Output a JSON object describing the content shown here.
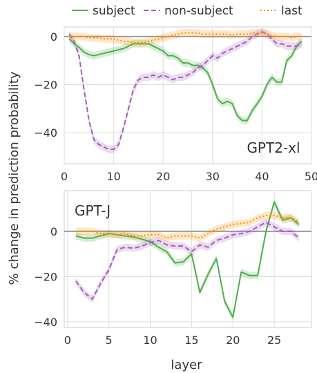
{
  "legend": {
    "items": [
      {
        "label": "subject",
        "color": "#4daf4a",
        "dash": "solid"
      },
      {
        "label": "non-subject",
        "color": "#a65cba",
        "dash": "dashed"
      },
      {
        "label": "last",
        "color": "#ff8c00",
        "dash": "dotted"
      }
    ],
    "placement": "top-center"
  },
  "ylabel": "% change in prediction probability",
  "xlabel": "layer",
  "chart_data": [
    {
      "type": "line",
      "panel_label": "GPT2-xl",
      "xlim": [
        0,
        50
      ],
      "ylim": [
        -53,
        4
      ],
      "xticks": [
        0,
        10,
        20,
        30,
        40,
        50
      ],
      "yticks": [
        0,
        -20,
        -40
      ],
      "grid": true,
      "series": [
        {
          "name": "subject",
          "color": "#4daf4a",
          "dash": "solid",
          "x": [
            1,
            2,
            3,
            4,
            5,
            6,
            7,
            8,
            9,
            10,
            11,
            12,
            13,
            14,
            15,
            16,
            17,
            18,
            19,
            20,
            21,
            22,
            23,
            24,
            25,
            26,
            27,
            28,
            29,
            30,
            31,
            32,
            33,
            34,
            35,
            36,
            37,
            38,
            39,
            40,
            41,
            42,
            43,
            44,
            45,
            46,
            47,
            48
          ],
          "y": [
            -1,
            -3,
            -4.5,
            -6.5,
            -7.5,
            -8,
            -7.5,
            -7,
            -6.5,
            -6,
            -5.5,
            -5,
            -4,
            -3,
            -3,
            -3,
            -3,
            -4,
            -5,
            -6,
            -8,
            -8,
            -9,
            -11,
            -11,
            -12,
            -12,
            -13,
            -15,
            -20,
            -26,
            -28,
            -27,
            -28,
            -33,
            -35,
            -35,
            -31,
            -28,
            -25,
            -20,
            -17,
            -19,
            -19,
            -10,
            -8,
            -4,
            -2
          ]
        },
        {
          "name": "non-subject",
          "color": "#a65cba",
          "dash": "dashed",
          "x": [
            1,
            2,
            3,
            4,
            5,
            6,
            7,
            8,
            9,
            10,
            11,
            12,
            13,
            14,
            15,
            16,
            17,
            18,
            19,
            20,
            21,
            22,
            23,
            24,
            25,
            26,
            27,
            28,
            29,
            30,
            31,
            32,
            33,
            34,
            35,
            36,
            37,
            38,
            39,
            40,
            41,
            42,
            43,
            44,
            45,
            46,
            47,
            48
          ],
          "y": [
            1,
            -2,
            -8,
            -22,
            -35,
            -43,
            -45,
            -46,
            -47,
            -47,
            -45,
            -38,
            -30,
            -22,
            -18,
            -17,
            -17,
            -16,
            -17,
            -16,
            -17,
            -18,
            -17,
            -17,
            -16,
            -15,
            -13,
            -12,
            -10,
            -8,
            -9,
            -7,
            -6,
            -5,
            -4,
            -3,
            -2,
            0,
            1,
            2,
            1,
            -1,
            -3,
            -3,
            -4,
            -4,
            -4,
            -3
          ]
        },
        {
          "name": "last",
          "color": "#ff8c00",
          "dash": "dotted",
          "x": [
            1,
            2,
            3,
            4,
            5,
            6,
            7,
            8,
            9,
            10,
            11,
            12,
            13,
            14,
            15,
            16,
            17,
            18,
            19,
            20,
            21,
            22,
            23,
            24,
            25,
            26,
            27,
            28,
            29,
            30,
            31,
            32,
            33,
            34,
            35,
            36,
            37,
            38,
            39,
            40,
            41,
            42,
            43,
            44,
            45,
            46,
            47,
            48
          ],
          "y": [
            0,
            0,
            0,
            0,
            -0.5,
            -0.5,
            -0.5,
            -1,
            -1,
            -1,
            -1.5,
            -2,
            -2,
            -2.5,
            -2.5,
            -2.5,
            -2,
            -1.5,
            -1,
            -0.5,
            0,
            0.5,
            1,
            1.5,
            1.5,
            1.5,
            1.5,
            1,
            1,
            1,
            1,
            1,
            1,
            0.5,
            1,
            1,
            1,
            1.5,
            1.5,
            1.5,
            1,
            0.5,
            0,
            0,
            0,
            -0.5,
            0,
            0
          ]
        }
      ]
    },
    {
      "type": "line",
      "panel_label": "GPT-J",
      "xlim": [
        -0.4,
        29.5
      ],
      "ylim": [
        -42.5,
        18
      ],
      "xticks": [
        0,
        5,
        10,
        15,
        20,
        25
      ],
      "yticks": [
        0,
        -20,
        -40
      ],
      "grid": true,
      "series": [
        {
          "name": "subject",
          "color": "#4daf4a",
          "dash": "solid",
          "x": [
            1,
            2,
            3,
            4,
            5,
            6,
            7,
            8,
            9,
            10,
            11,
            12,
            13,
            14,
            15,
            16,
            17,
            18,
            19,
            20,
            21,
            22,
            23,
            24,
            25,
            26,
            27,
            28
          ],
          "y": [
            -2,
            -3,
            -3,
            -2,
            -1,
            -1.5,
            -2,
            -2.5,
            -3.5,
            -4.5,
            -7,
            -9,
            -14,
            -13.5,
            -10,
            -27,
            -19,
            -12,
            -31,
            -38,
            -18,
            -19.5,
            -19.5,
            0,
            13,
            5,
            6,
            3
          ]
        },
        {
          "name": "non-subject",
          "color": "#a65cba",
          "dash": "dashed",
          "x": [
            1,
            2,
            3,
            4,
            5,
            6,
            7,
            8,
            9,
            10,
            11,
            12,
            13,
            14,
            15,
            16,
            17,
            18,
            19,
            20,
            21,
            22,
            23,
            24,
            25,
            26,
            27,
            28
          ],
          "y": [
            -22,
            -27,
            -30,
            -23,
            -17,
            -8,
            -7,
            -7.5,
            -6.5,
            -5,
            -4,
            -6,
            -6.5,
            -6.5,
            -9,
            -6,
            -7,
            -4,
            -3,
            -1.5,
            -1,
            0,
            2,
            4,
            2,
            0,
            0,
            -3
          ]
        },
        {
          "name": "last",
          "color": "#ff8c00",
          "dash": "dotted",
          "x": [
            1,
            2,
            3,
            4,
            5,
            6,
            7,
            8,
            9,
            10,
            11,
            12,
            13,
            14,
            15,
            16,
            17,
            18,
            19,
            20,
            21,
            22,
            23,
            24,
            25,
            26,
            27,
            28
          ],
          "y": [
            0,
            0,
            0,
            -1,
            -1,
            -1.5,
            -1,
            -2,
            -2,
            -1.5,
            -1.5,
            -3,
            -2,
            -2,
            -2,
            -3,
            -1,
            1,
            2,
            3,
            3.5,
            4,
            6,
            7,
            7,
            6,
            6,
            4
          ]
        }
      ]
    }
  ]
}
